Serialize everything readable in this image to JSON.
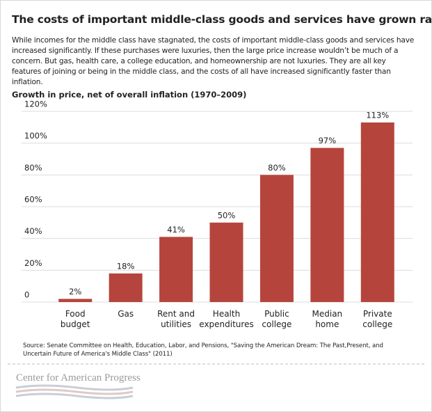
{
  "chart_data": {
    "type": "bar",
    "title": "The costs of important middle-class goods and services have grown rapidly",
    "subtitle": "While incomes for the middle class have stagnated, the costs of important middle-class goods and services have increased significantly. If these purchases were luxuries, then the large price increase wouldn’t be much of a concern. But gas, health care, a college education, and homeownership are not luxuries. They are all key features of joining or being in the middle class, and the costs of all have increased significantly faster than inflation.",
    "y_label": "Growth in price, net of overall inflation (1970–2009)",
    "categories": [
      "Food\nbudget",
      "Gas",
      "Rent and\nutilities",
      "Health\nexpenditures",
      "Public\ncollege",
      "Median\nhome",
      "Private\ncollege"
    ],
    "values": [
      2,
      18,
      41,
      50,
      80,
      97,
      113
    ],
    "value_labels": [
      "2%",
      "18%",
      "41%",
      "50%",
      "80%",
      "97%",
      "113%"
    ],
    "color": "#b5453c",
    "ylim": [
      0,
      120
    ],
    "yticks": [
      0,
      {
        "value": 20,
        "label": "20%"
      },
      {
        "value": 40,
        "label": "40%"
      },
      {
        "value": 60,
        "label": "60%"
      },
      {
        "value": 80,
        "label": "80%"
      },
      {
        "value": 100,
        "label": "100%"
      },
      {
        "value": 120,
        "label": "120%"
      }
    ],
    "grid": true
  },
  "source": "Source: Senate Committee on Health, Education, Labor, and Pensions, \"Saving the American Dream: The Past,Present, and Uncertain Future of America's Middle Class\" (2011)",
  "brand": "Center for American Progress"
}
